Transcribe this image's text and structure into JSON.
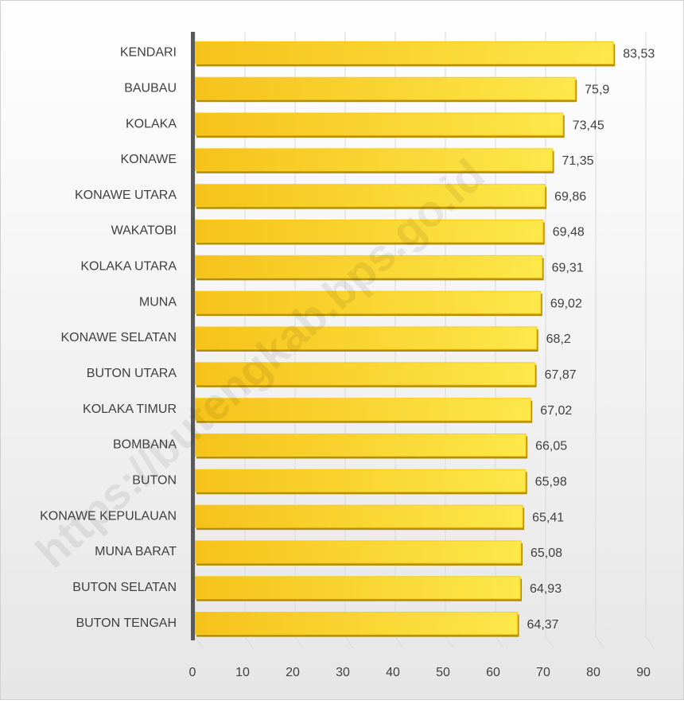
{
  "chart_data": {
    "type": "barh",
    "watermark": "https://butengkab.bps.go.id",
    "categories": [
      "KENDARI",
      "BAUBAU",
      "KOLAKA",
      "KONAWE",
      "KONAWE UTARA",
      "WAKATOBI",
      "KOLAKA UTARA",
      "MUNA",
      "KONAWE SELATAN",
      "BUTON UTARA",
      "KOLAKA TIMUR",
      "BOMBANA",
      "BUTON",
      "KONAWE KEPULAUAN",
      "MUNA BARAT",
      "BUTON SELATAN",
      "BUTON TENGAH"
    ],
    "values": [
      83.53,
      75.9,
      73.45,
      71.35,
      69.86,
      69.48,
      69.31,
      69.02,
      68.2,
      67.87,
      67.02,
      66.05,
      65.98,
      65.41,
      65.08,
      64.93,
      64.37
    ],
    "value_labels": [
      "83,53",
      "75,9",
      "73,45",
      "71,35",
      "69,86",
      "69,48",
      "69,31",
      "69,02",
      "68,2",
      "67,87",
      "67,02",
      "66,05",
      "65,98",
      "65,41",
      "65,08",
      "64,93",
      "64,37"
    ],
    "color": "#f8cc1b",
    "xlim": [
      0,
      90
    ],
    "xticks": [
      0,
      10,
      20,
      30,
      40,
      50,
      60,
      70,
      80,
      90
    ],
    "grid": true
  }
}
